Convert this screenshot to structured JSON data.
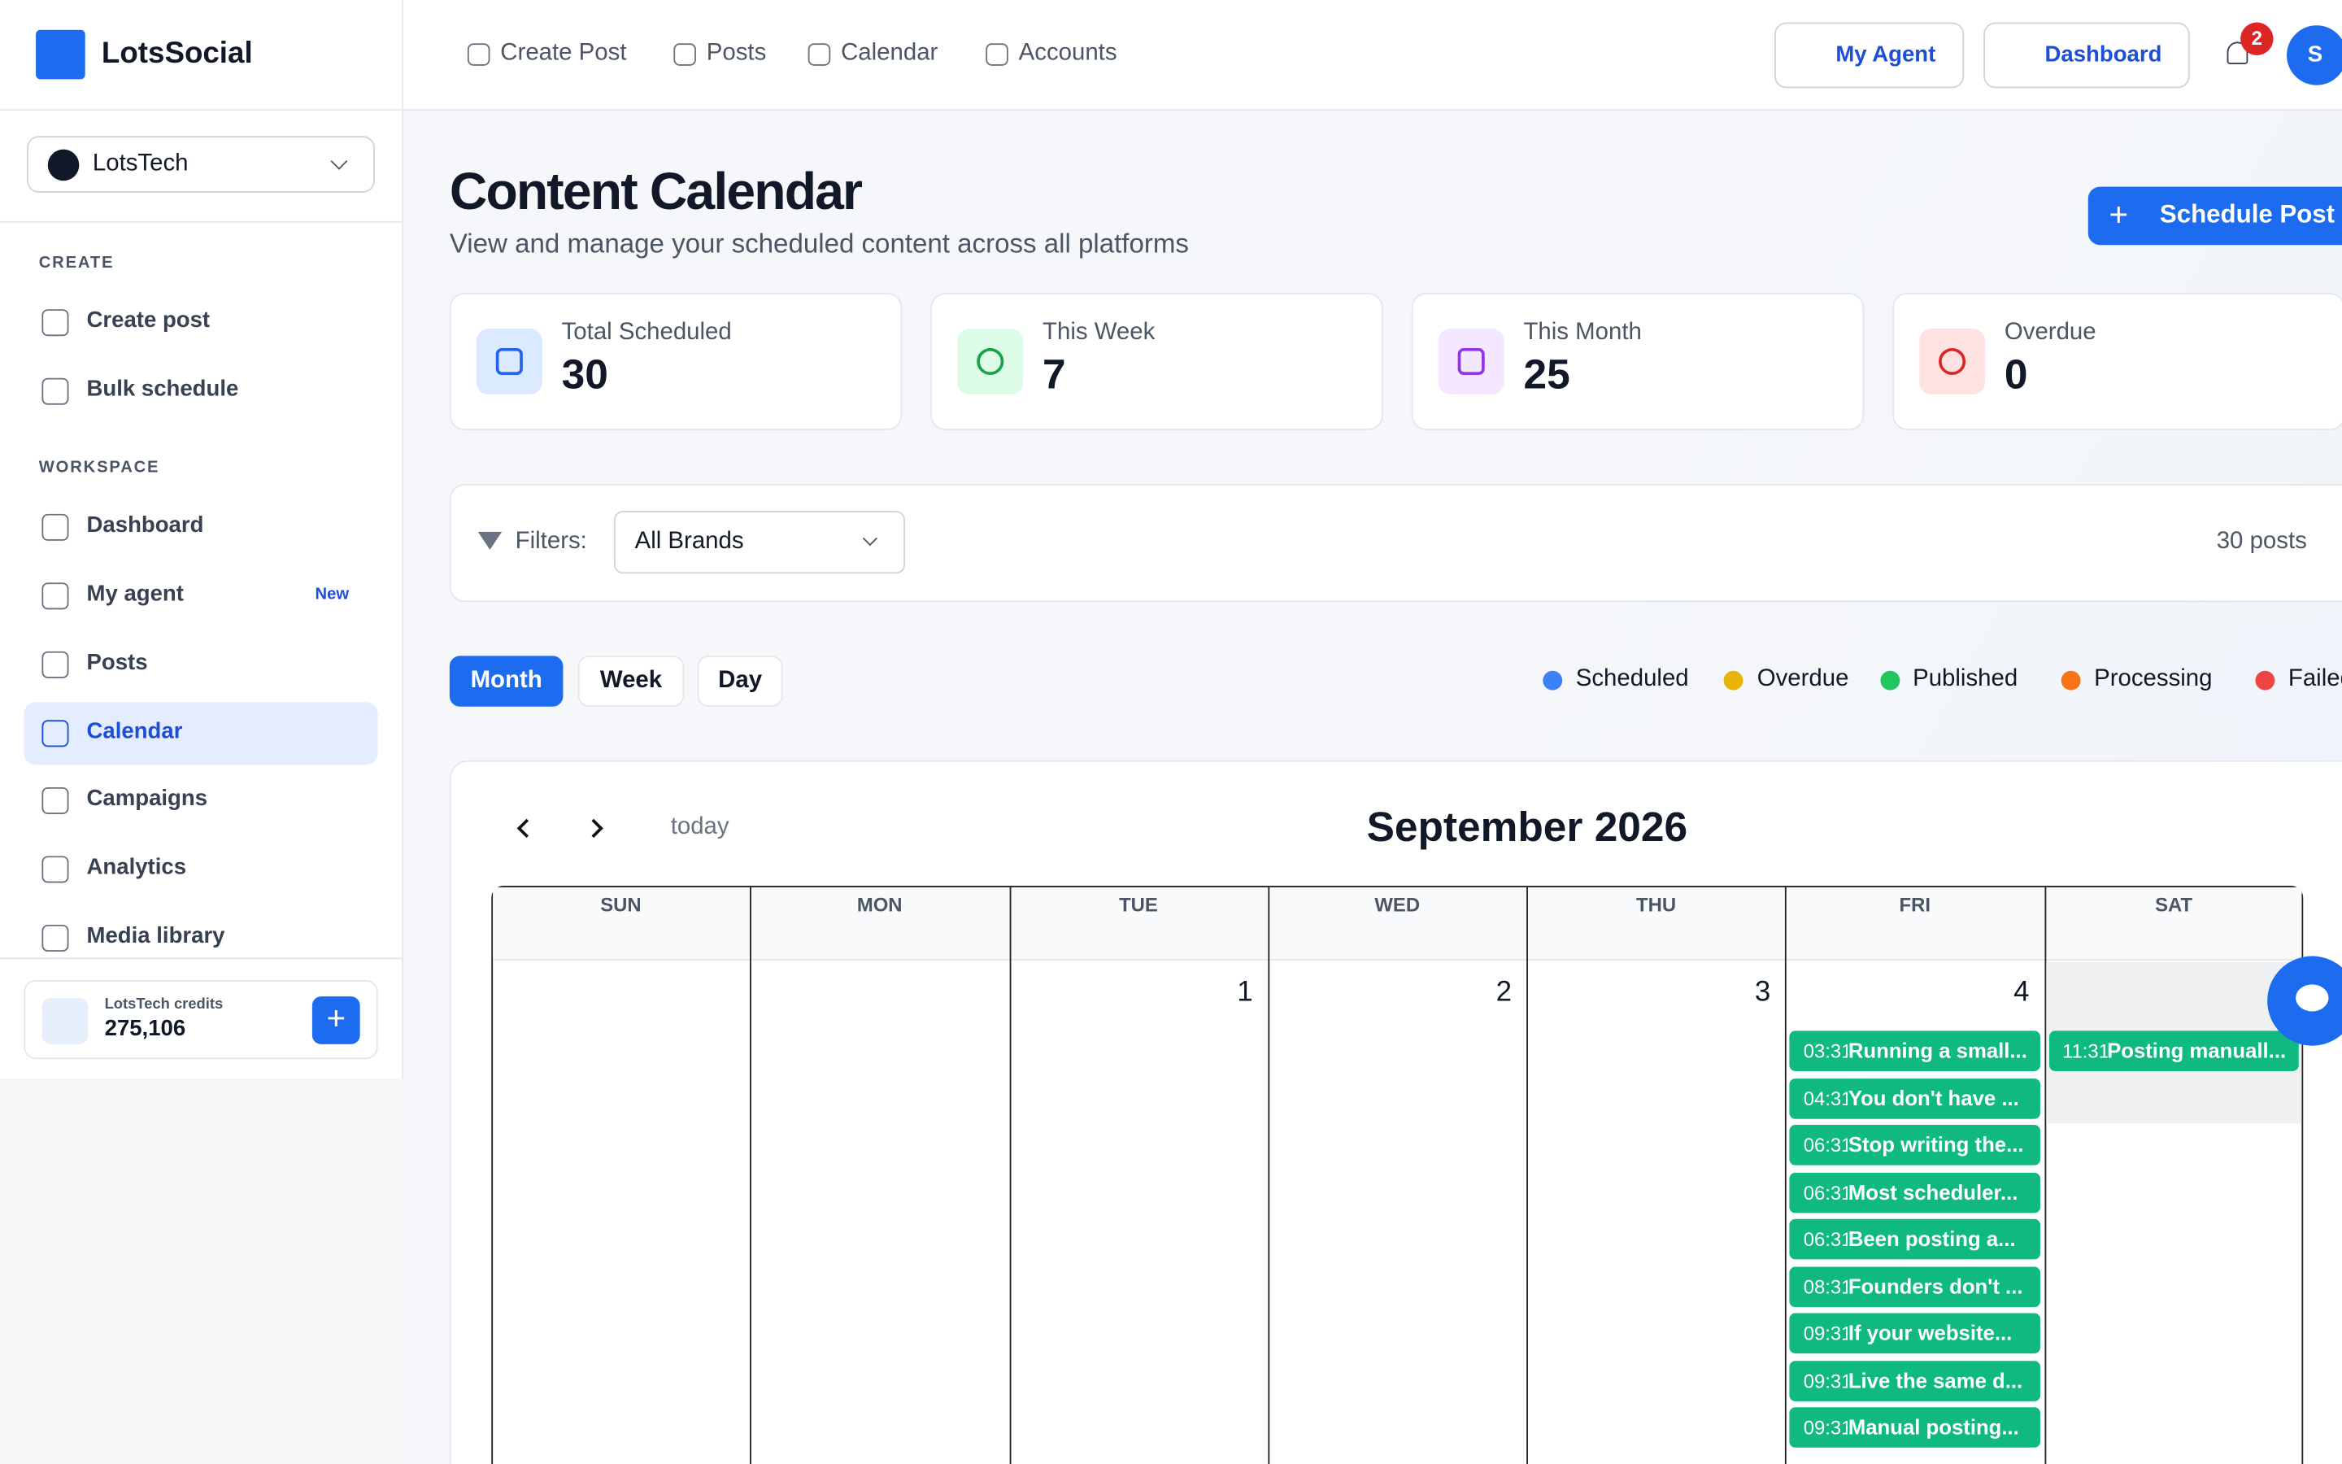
{
  "brand": {
    "name": "LotsSocial"
  },
  "top_nav": {
    "links": [
      "Create Post",
      "Posts",
      "Calendar",
      "Accounts"
    ],
    "my_agent": "My Agent",
    "dashboard": "Dashboard",
    "notifications": 2,
    "avatar": "S"
  },
  "sidebar": {
    "workspace_select": "LotsTech",
    "sections": [
      {
        "title": "CREATE",
        "items": [
          {
            "label": "Create post"
          },
          {
            "label": "Bulk schedule"
          }
        ]
      },
      {
        "title": "WORKSPACE",
        "items": [
          {
            "label": "Dashboard"
          },
          {
            "label": "My agent",
            "badge": "New"
          },
          {
            "label": "Posts"
          },
          {
            "label": "Calendar",
            "active": true
          },
          {
            "label": "Campaigns"
          },
          {
            "label": "Analytics"
          },
          {
            "label": "Media library"
          }
        ]
      }
    ],
    "credits": {
      "label": "LotsTech credits",
      "value": "275,106"
    }
  },
  "header": {
    "title": "Content Calendar",
    "subtitle": "View and manage your scheduled content across all platforms",
    "action": "Schedule Post"
  },
  "stats": [
    {
      "label": "Total Scheduled",
      "value": 30,
      "color": "#2563eb",
      "bg": "#dbeafe"
    },
    {
      "label": "This Week",
      "value": 7,
      "color": "#16a34a",
      "bg": "#dcfce7"
    },
    {
      "label": "This Month",
      "value": 25,
      "color": "#9333ea",
      "bg": "#f3e8ff"
    },
    {
      "label": "Overdue",
      "value": 0,
      "color": "#dc2626",
      "bg": "#fee2e2"
    }
  ],
  "filters": {
    "label": "Filters:",
    "brand": "All Brands",
    "count": "30 posts"
  },
  "views": {
    "options": [
      "Month",
      "Week",
      "Day"
    ],
    "active": 0
  },
  "legend": [
    {
      "label": "Scheduled",
      "color": "#3b82f6"
    },
    {
      "label": "Overdue",
      "color": "#eab308"
    },
    {
      "label": "Published",
      "color": "#22c55e"
    },
    {
      "label": "Processing",
      "color": "#f97316"
    },
    {
      "label": "Failed",
      "color": "#ef4444"
    }
  ],
  "calendar": {
    "today": "today",
    "month": "September 2026",
    "weekdays": [
      "SUN",
      "MON",
      "TUE",
      "WED",
      "THU",
      "FRI",
      "SAT"
    ],
    "days": [
      {
        "date": null,
        "events": []
      },
      {
        "date": null,
        "events": []
      },
      {
        "date": 1,
        "events": []
      },
      {
        "date": 2,
        "events": []
      },
      {
        "date": 3,
        "events": []
      },
      {
        "date": 4,
        "events": [
          {
            "time": "03:31",
            "title": "Running a small..."
          },
          {
            "time": "04:31",
            "title": "You don't have ..."
          },
          {
            "time": "06:31",
            "title": "Stop writing the..."
          },
          {
            "time": "06:31",
            "title": "Most scheduler..."
          },
          {
            "time": "06:31",
            "title": "Been posting a..."
          },
          {
            "time": "08:31",
            "title": "Founders don't ..."
          },
          {
            "time": "09:31",
            "title": "If your website..."
          },
          {
            "time": "09:31",
            "title": "Live the same d..."
          },
          {
            "time": "09:31",
            "title": "Manual posting..."
          }
        ]
      },
      {
        "date": null,
        "events": [
          {
            "time": "11:31",
            "title": "Posting manuall..."
          }
        ]
      }
    ]
  }
}
